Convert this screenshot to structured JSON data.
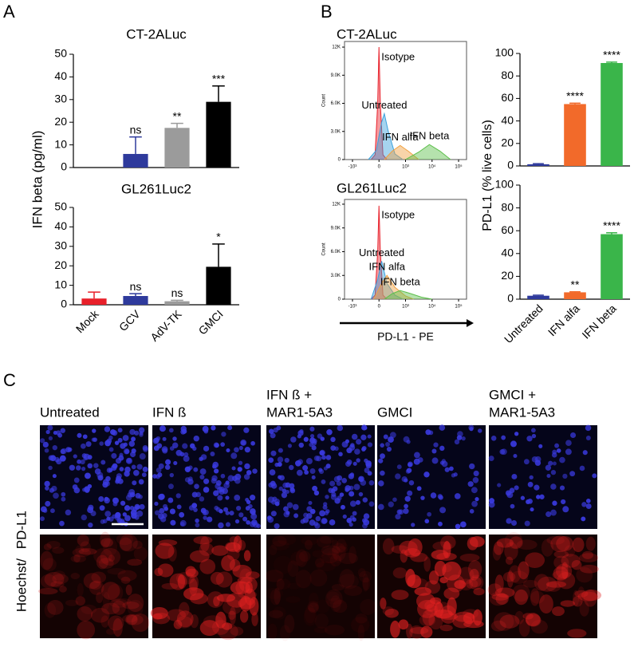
{
  "panels": [
    "A",
    "B",
    "C"
  ],
  "chart_data": [
    {
      "type": "bar",
      "title": "CT-2ALuc",
      "ylabel": "IFN beta (pg/ml)",
      "values": [
        0,
        6,
        17.5,
        29
      ],
      "errors": [
        0,
        7.5,
        2,
        7
      ],
      "annotations": [
        null,
        "ns",
        "**",
        "***"
      ],
      "colors": [
        "#e8202a",
        "#2e3a9c",
        "#9b9b9b",
        "#000000"
      ],
      "ylim": [
        0,
        50
      ],
      "yticks": [
        0,
        10,
        20,
        30,
        40,
        50
      ]
    },
    {
      "type": "bar",
      "title": "GL261Luc2",
      "categories": [
        "Mock",
        "GCV",
        "AdV-TK",
        "GMCI"
      ],
      "values": [
        3.2,
        4.5,
        1.8,
        19.5
      ],
      "errors": [
        3.3,
        1.2,
        0.5,
        11.7
      ],
      "annotations": [
        null,
        "ns",
        "ns",
        "*"
      ],
      "colors": [
        "#e8202a",
        "#2e3a9c",
        "#9b9b9b",
        "#000000"
      ],
      "ylim": [
        0,
        50
      ],
      "yticks": [
        0,
        10,
        20,
        30,
        40,
        50
      ]
    },
    {
      "type": "density",
      "title": "CT-2ALuc",
      "ylabel": "Count",
      "series": [
        {
          "name": "Isotype",
          "color": "#e8202a",
          "x": [
            -0.3,
            -0.15,
            -0.05,
            0,
            0.05,
            0.15,
            0.3
          ],
          "values": [
            0,
            500,
            6000,
            12000,
            6000,
            500,
            0
          ]
        },
        {
          "name": "Untreated",
          "color": "#3aa0dc",
          "x": [
            -0.4,
            -0.1,
            0.1,
            0.2,
            0.35,
            0.6,
            0.9
          ],
          "values": [
            0,
            1000,
            4000,
            4900,
            3000,
            600,
            0
          ]
        },
        {
          "name": "IFN alfa",
          "color": "#f0a040",
          "x": [
            0.2,
            0.5,
            0.8,
            1.1,
            1.5
          ],
          "values": [
            0,
            900,
            1500,
            900,
            0
          ]
        },
        {
          "name": "IFN beta",
          "color": "#5cbf4a",
          "x": [
            1.0,
            1.5,
            1.9,
            2.3,
            2.7
          ],
          "values": [
            0,
            800,
            1600,
            900,
            0
          ]
        }
      ],
      "xlim": [
        -1.3,
        3.3
      ],
      "ylim": [
        0,
        12600
      ],
      "xticks": [
        {
          "value": -1,
          "label": "-10³"
        },
        0,
        {
          "value": 1,
          "label": "10³"
        },
        {
          "value": 2,
          "label": "10⁴"
        },
        {
          "value": 3,
          "label": "10⁵"
        }
      ],
      "yticks": [
        0,
        {
          "value": 3000,
          "label": "3.0K"
        },
        {
          "value": 6000,
          "label": "6.0K"
        },
        {
          "value": 9000,
          "label": "9.0K"
        },
        {
          "value": 12000,
          "label": "12K"
        }
      ]
    },
    {
      "type": "density",
      "title": "GL261Luc2",
      "ylabel": "Count",
      "xlabel": "PD-L1 - PE",
      "series": [
        {
          "name": "Isotype",
          "color": "#e8202a",
          "x": [
            -0.3,
            -0.15,
            -0.05,
            0,
            0.05,
            0.15,
            0.3
          ],
          "values": [
            0,
            500,
            6000,
            11800,
            6000,
            500,
            0
          ]
        },
        {
          "name": "Untreated",
          "color": "#3aa0dc",
          "x": [
            -0.3,
            -0.05,
            0.1,
            0.3,
            0.6,
            0.9
          ],
          "values": [
            0,
            2500,
            4800,
            2000,
            500,
            0
          ]
        },
        {
          "name": "IFN alfa",
          "color": "#f0a040",
          "x": [
            -0.2,
            0.1,
            0.3,
            0.6,
            1.0,
            1.3
          ],
          "values": [
            0,
            2000,
            3000,
            1500,
            400,
            0
          ]
        },
        {
          "name": "IFN beta",
          "color": "#5cbf4a",
          "x": [
            0.2,
            0.5,
            0.8,
            1.2,
            1.6,
            2.0
          ],
          "values": [
            0,
            700,
            1100,
            700,
            250,
            0
          ]
        }
      ],
      "xlim": [
        -1.3,
        3.3
      ],
      "ylim": [
        0,
        12600
      ],
      "xticks": [
        {
          "value": -1,
          "label": "-10³"
        },
        0,
        {
          "value": 1,
          "label": "10³"
        },
        {
          "value": 2,
          "label": "10⁴"
        },
        {
          "value": 3,
          "label": "10⁵"
        }
      ],
      "yticks": [
        0,
        {
          "value": 3000,
          "label": "3.0K"
        },
        {
          "value": 6000,
          "label": "6.0K"
        },
        {
          "value": 9000,
          "label": "9.0K"
        },
        {
          "value": 12000,
          "label": "12K"
        }
      ]
    },
    {
      "type": "bar",
      "ylabel": "PD-L1 (% live cells)",
      "values": [
        1.5,
        55,
        91.5
      ],
      "errors": [
        0.5,
        0.8,
        0.8
      ],
      "annotations": [
        null,
        "****",
        "****"
      ],
      "colors": [
        "#2e3a9c",
        "#f26a2a",
        "#3ab54a"
      ],
      "ylim": [
        0,
        100
      ],
      "yticks": [
        0,
        20,
        40,
        60,
        80,
        100
      ]
    },
    {
      "type": "bar",
      "categories": [
        "Untreated",
        "IFN alfa",
        "IFN beta"
      ],
      "values": [
        3,
        6,
        57
      ],
      "errors": [
        0.5,
        0.5,
        1.2
      ],
      "annotations": [
        null,
        "**",
        "****"
      ],
      "colors": [
        "#2e3a9c",
        "#f26a2a",
        "#3ab54a"
      ],
      "ylim": [
        0,
        100
      ],
      "yticks": [
        0,
        20,
        40,
        60,
        80,
        100
      ]
    }
  ],
  "panel_c": {
    "columns": [
      "Untreated",
      "IFN ß",
      "IFN ß +",
      "GMCI",
      "GMCI +"
    ],
    "columns_second_line": [
      null,
      null,
      "MAR1-5A3",
      null,
      "MAR1-5A3"
    ],
    "row_label": [
      "Hoechst/",
      "PD-L1"
    ]
  }
}
